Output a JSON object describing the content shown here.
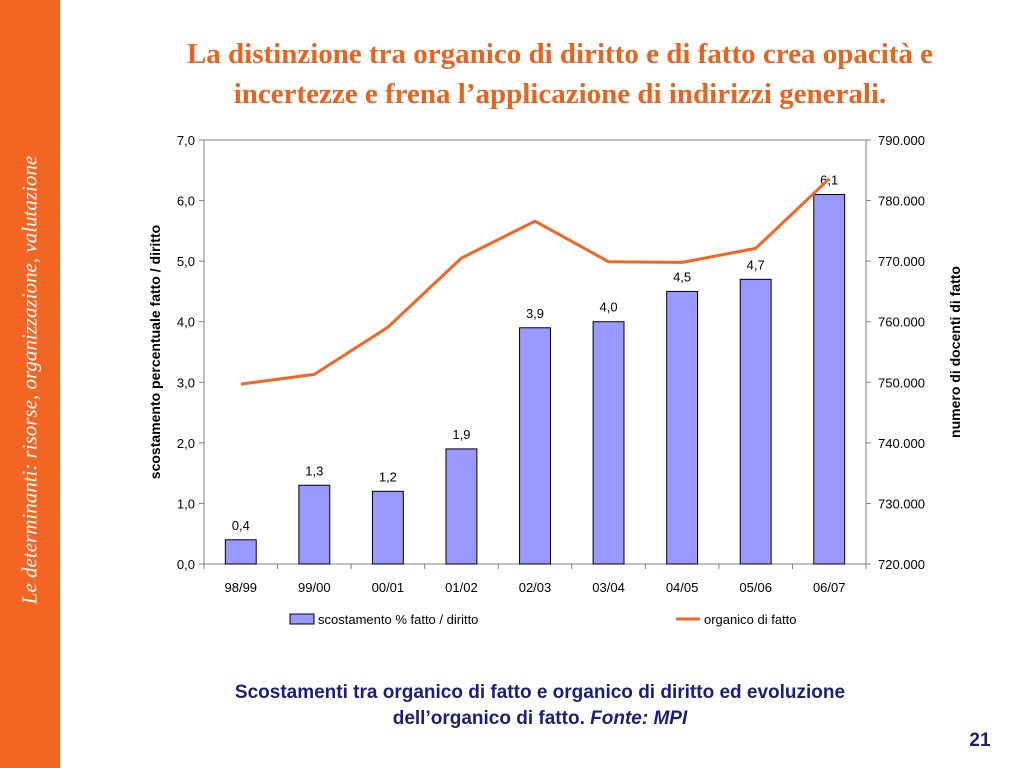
{
  "slide": {
    "sidebar_text": "Le determinanti: risorse, organizzazione, valutazione",
    "title_line1": "La distinzione tra organico di diritto e di fatto crea opacità e",
    "title_line2": "incertezze e  frena l’applicazione di indirizzi generali.",
    "caption_line1": "Scostamenti tra organico di fatto e organico di diritto ed evoluzione",
    "caption_line2": "dell’organico di fatto. ",
    "caption_source": "Fonte: MPI",
    "page_number": "21"
  },
  "colors": {
    "sidebar": "#f26522",
    "title": "#e8641e",
    "bar_fill": "#9999ff",
    "bar_stroke": "#000000",
    "line": "#f26522",
    "caption": "#1a1f7a"
  },
  "chart_data": {
    "type": "bar",
    "categories": [
      "98/99",
      "99/00",
      "00/01",
      "01/02",
      "02/03",
      "03/04",
      "04/05",
      "05/06",
      "06/07"
    ],
    "ylabel": "scostamento percentuale fatto / diritto",
    "y2label": "numero di docenti di fatto",
    "ylim": [
      0,
      7
    ],
    "y2lim": [
      720000,
      790000
    ],
    "yticks": [
      "0,0",
      "1,0",
      "2,0",
      "3,0",
      "4,0",
      "5,0",
      "6,0",
      "7,0"
    ],
    "y2ticks": [
      "720.000",
      "730.000",
      "740.000",
      "750.000",
      "760.000",
      "770.000",
      "780.000",
      "790.000"
    ],
    "legend_position": "bottom",
    "grid": false,
    "series": [
      {
        "name": "scostamento % fatto / diritto",
        "type": "bar",
        "axis": "left",
        "values": [
          0.4,
          1.3,
          1.2,
          1.9,
          3.9,
          4.0,
          4.5,
          4.7,
          6.1
        ],
        "labels": [
          "0,4",
          "1,3",
          "1,2",
          "1,9",
          "3,9",
          "4,0",
          "4,5",
          "4,7",
          "6,1"
        ]
      },
      {
        "name": "organico di fatto",
        "type": "line",
        "axis": "right",
        "values": [
          749700,
          751300,
          759100,
          770500,
          776600,
          769900,
          769800,
          772100,
          783600
        ]
      }
    ]
  }
}
